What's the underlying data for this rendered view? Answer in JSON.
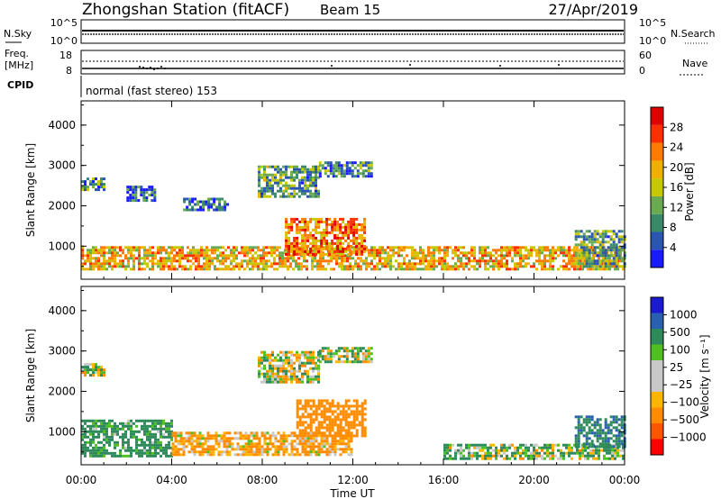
{
  "header": {
    "station": "Zhongshan Station (fitACF)",
    "beam": "Beam 15",
    "date": "27/Apr/2019"
  },
  "panels": {
    "nsky": {
      "label": "N.Sky",
      "left_ticks": [
        "10^5",
        "10^0"
      ],
      "right_ticks": [
        "10^5",
        "10^0"
      ],
      "right_label": "N.Search"
    },
    "freq": {
      "label_line1": "Freq.",
      "label_line2": "[MHz]",
      "left_ticks": [
        "18",
        "8"
      ],
      "right_ticks": [
        "60",
        "0"
      ],
      "right_label": "Nave"
    },
    "cpid": {
      "label": "CPID",
      "value": "normal (fast stereo) 153"
    }
  },
  "colors": {
    "power_scale": [
      "#1a1aff",
      "#2a55b0",
      "#3a8a6a",
      "#6aaa50",
      "#c8c800",
      "#f0b000",
      "#ff7a00",
      "#ff3000",
      "#e00000"
    ],
    "velocity_scale": [
      "#ff0000",
      "#ff5500",
      "#ff8c00",
      "#ffb400",
      "#c8c8c8",
      "#c8c8c8",
      "#50c020",
      "#2e8a5a",
      "#2a60b0",
      "#1a1ad0"
    ]
  },
  "chart_data": [
    {
      "type": "heatmap",
      "name": "power",
      "ylabel": "Slant Range [km]",
      "xlabel": "Time UT",
      "x_ticks": [
        "00:00",
        "04:00",
        "08:00",
        "12:00",
        "16:00",
        "20:00",
        "00:00"
      ],
      "xlim_hours": [
        0,
        24
      ],
      "y_ticks": [
        "4000",
        "3000",
        "2000",
        "1000"
      ],
      "ylim_km": [
        180,
        4600
      ],
      "colorbar": {
        "label": "Power [dB]",
        "ticks": [
          "28",
          "24",
          "20",
          "16",
          "12",
          "8",
          "4"
        ],
        "range": [
          0,
          30
        ]
      },
      "echo_regions": [
        {
          "t0": 0.0,
          "t1": 24.0,
          "r0": 400,
          "r1": 1000,
          "level": 18
        },
        {
          "t0": 0.0,
          "t1": 1.0,
          "r0": 2400,
          "r1": 2700,
          "level": 8
        },
        {
          "t0": 2.0,
          "t1": 3.2,
          "r0": 2100,
          "r1": 2500,
          "level": 6
        },
        {
          "t0": 4.5,
          "t1": 6.5,
          "r0": 1900,
          "r1": 2200,
          "level": 6
        },
        {
          "t0": 7.8,
          "t1": 10.5,
          "r0": 2200,
          "r1": 3000,
          "level": 10
        },
        {
          "t0": 10.5,
          "t1": 12.8,
          "r0": 2700,
          "r1": 3100,
          "level": 8
        },
        {
          "t0": 9.0,
          "t1": 12.5,
          "r0": 800,
          "r1": 1700,
          "level": 22
        },
        {
          "t0": 21.8,
          "t1": 24.0,
          "r0": 500,
          "r1": 1400,
          "level": 10
        }
      ]
    },
    {
      "type": "heatmap",
      "name": "velocity",
      "ylabel": "Slant Range [km]",
      "xlabel": "Time UT",
      "x_ticks": [
        "00:00",
        "04:00",
        "08:00",
        "12:00",
        "16:00",
        "20:00",
        "00:00"
      ],
      "xlim_hours": [
        0,
        24
      ],
      "y_ticks": [
        "4000",
        "3000",
        "2000",
        "1000"
      ],
      "ylim_km": [
        180,
        4600
      ],
      "colorbar": {
        "label": "Velocity [m s⁻¹]",
        "ticks": [
          "1000",
          "500",
          "100",
          "25",
          "−25",
          "−100",
          "−500",
          "−1000"
        ],
        "range": [
          -1200,
          1200
        ]
      },
      "echo_regions": [
        {
          "t0": 0.0,
          "t1": 4.0,
          "r0": 400,
          "r1": 1300,
          "velocity": 200
        },
        {
          "t0": 4.0,
          "t1": 12.0,
          "r0": 400,
          "r1": 1000,
          "velocity": -150
        },
        {
          "t0": 0.0,
          "t1": 1.0,
          "r0": 2400,
          "r1": 2700,
          "velocity": 0
        },
        {
          "t0": 7.8,
          "t1": 10.5,
          "r0": 2200,
          "r1": 3000,
          "velocity": 0
        },
        {
          "t0": 10.5,
          "t1": 12.8,
          "r0": 2700,
          "r1": 3100,
          "velocity": 0
        },
        {
          "t0": 9.5,
          "t1": 12.5,
          "r0": 900,
          "r1": 1800,
          "velocity": -300
        },
        {
          "t0": 16.0,
          "t1": 24.0,
          "r0": 300,
          "r1": 700,
          "velocity": 80
        },
        {
          "t0": 21.8,
          "t1": 24.0,
          "r0": 600,
          "r1": 1400,
          "velocity": 400
        }
      ]
    }
  ]
}
